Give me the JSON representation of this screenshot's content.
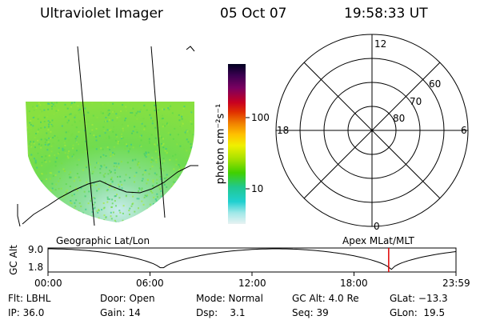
{
  "header": {
    "title": "Ultraviolet Imager",
    "date": "05 Oct 07",
    "time": "19:58:33 UT"
  },
  "colorbar": {
    "label": "photon cm⁻²s⁻¹",
    "ticks": [
      "100",
      "10"
    ],
    "colors": [
      "#000020",
      "#3a0050",
      "#6a0070",
      "#a00040",
      "#d80010",
      "#f04000",
      "#f08000",
      "#ffc000",
      "#f8f000",
      "#c8f000",
      "#80e000",
      "#40d000",
      "#20c860",
      "#10c8a0",
      "#20d0d0",
      "#a0e8e8",
      "#e0f0f0"
    ]
  },
  "image_panel": {
    "label": "Geographic Lat/Lon",
    "fill_color": "#6edc4a"
  },
  "polar_panel": {
    "label": "Apex MLat/MLT",
    "mlt_labels": [
      "12",
      "18",
      "6",
      "0"
    ],
    "lat_labels": [
      "60",
      "70",
      "80"
    ]
  },
  "altitude_panel": {
    "axis_label": "GC Alt",
    "y_ticks": [
      "9.0",
      "1.8"
    ],
    "x_ticks": [
      "00:00",
      "06:00",
      "12:00",
      "18:00",
      "23:59"
    ],
    "current_time_fraction": 0.835
  },
  "info": {
    "filter": "Flt: LBHL",
    "ip": "IP: 36.0",
    "door": "Door: Open",
    "gain": "Gain: 14",
    "mode": "Mode: Normal",
    "dsp": "Dsp:    3.1",
    "gc_alt": "GC Alt: 4.0 Re",
    "seq": "Seq: 39",
    "glat": "GLat: −13.3",
    "glon": "GLon:  19.5"
  }
}
